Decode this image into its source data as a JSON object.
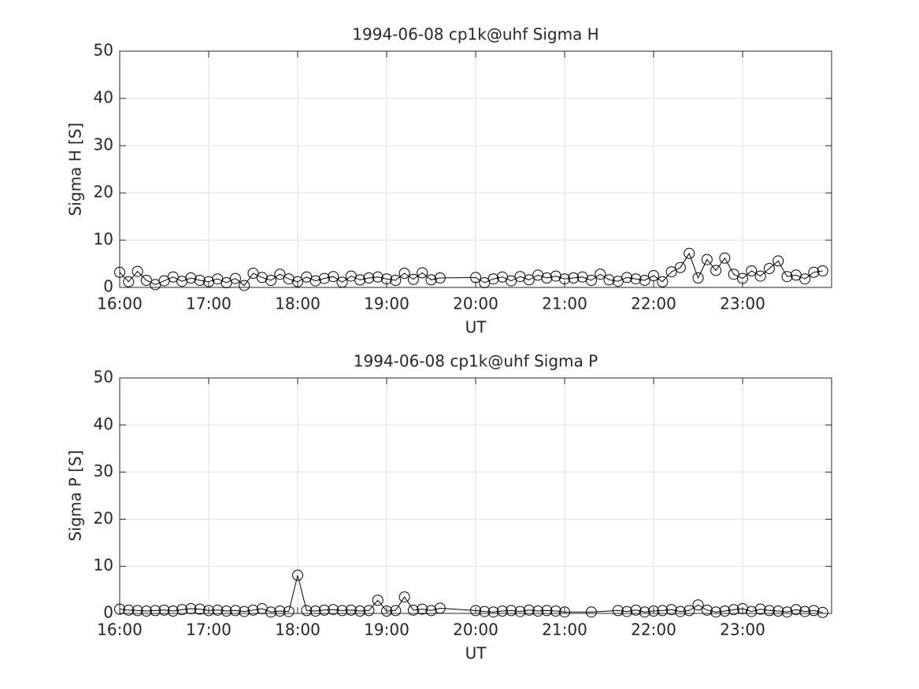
{
  "chart_data": [
    {
      "type": "line",
      "title": "1994-06-08  cp1k@uhf Sigma H",
      "xlabel": "UT",
      "ylabel": "Sigma H [S]",
      "color": "#000000",
      "marker": "circle",
      "grid": true,
      "xlim": [
        16,
        24
      ],
      "ylim": [
        0,
        50
      ],
      "xticks": [
        {
          "value": 16,
          "label": "16:00"
        },
        {
          "value": 17,
          "label": "17:00"
        },
        {
          "value": 18,
          "label": "18:00"
        },
        {
          "value": 19,
          "label": "19:00"
        },
        {
          "value": 20,
          "label": "20:00"
        },
        {
          "value": 21,
          "label": "21:00"
        },
        {
          "value": 22,
          "label": "22:00"
        },
        {
          "value": 23,
          "label": "23:00"
        }
      ],
      "yticks": [
        0,
        10,
        20,
        30,
        40,
        50
      ],
      "x": [
        16,
        16.1,
        16.2,
        16.3,
        16.4,
        16.5,
        16.6,
        16.7,
        16.8,
        16.9,
        17,
        17.1,
        17.2,
        17.3,
        17.4,
        17.5,
        17.6,
        17.7,
        17.8,
        17.9,
        18,
        18.1,
        18.2,
        18.3,
        18.4,
        18.5,
        18.6,
        18.7,
        18.8,
        18.9,
        19,
        19.1,
        19.2,
        19.3,
        19.4,
        19.5,
        19.6,
        20,
        20.1,
        20.2,
        20.3,
        20.4,
        20.5,
        20.6,
        20.7,
        20.8,
        20.9,
        21,
        21.1,
        21.2,
        21.3,
        21.4,
        21.5,
        21.6,
        21.7,
        21.8,
        21.9,
        22,
        22.1,
        22.2,
        22.3,
        22.4,
        22.5,
        22.6,
        22.7,
        22.8,
        22.9,
        23,
        23.1,
        23.2,
        23.3,
        23.4,
        23.5,
        23.6,
        23.7,
        23.8,
        23.9
      ],
      "values": [
        3.2,
        1.2,
        3.4,
        1.5,
        0.6,
        1.4,
        2.2,
        1.3,
        2.0,
        1.5,
        1.2,
        1.8,
        1.0,
        1.9,
        0.4,
        3.0,
        2.1,
        1.5,
        2.8,
        1.8,
        1.2,
        2.2,
        1.4,
        1.9,
        2.3,
        1.1,
        2.4,
        1.6,
        2.0,
        2.2,
        1.8,
        1.5,
        3.0,
        1.7,
        3.1,
        1.6,
        2.0,
        2.1,
        1.0,
        1.8,
        2.2,
        1.4,
        2.3,
        1.6,
        2.6,
        2.0,
        2.4,
        1.8,
        2.0,
        2.2,
        1.5,
        2.8,
        1.6,
        1.3,
        2.1,
        1.8,
        1.5,
        2.5,
        1.2,
        3.3,
        4.2,
        7.2,
        2.0,
        5.9,
        3.6,
        6.2,
        2.8,
        1.9,
        3.5,
        2.4,
        4.0,
        5.6,
        2.3,
        2.6,
        1.8,
        3.2,
        3.5
      ]
    },
    {
      "type": "line",
      "title": "1994-06-08  cp1k@uhf Sigma P",
      "xlabel": "UT",
      "ylabel": "Sigma P [S]",
      "color": "#000000",
      "marker": "circle",
      "grid": true,
      "xlim": [
        16,
        24
      ],
      "ylim": [
        0,
        50
      ],
      "xticks": [
        {
          "value": 16,
          "label": "16:00"
        },
        {
          "value": 17,
          "label": "17:00"
        },
        {
          "value": 18,
          "label": "18:00"
        },
        {
          "value": 19,
          "label": "19:00"
        },
        {
          "value": 20,
          "label": "20:00"
        },
        {
          "value": 21,
          "label": "21:00"
        },
        {
          "value": 22,
          "label": "22:00"
        },
        {
          "value": 23,
          "label": "23:00"
        }
      ],
      "yticks": [
        0,
        10,
        20,
        30,
        40,
        50
      ],
      "x": [
        16,
        16.1,
        16.2,
        16.3,
        16.4,
        16.5,
        16.6,
        16.7,
        16.8,
        16.9,
        17,
        17.1,
        17.2,
        17.3,
        17.4,
        17.5,
        17.6,
        17.7,
        17.8,
        17.9,
        18,
        18.1,
        18.2,
        18.3,
        18.4,
        18.5,
        18.6,
        18.7,
        18.8,
        18.9,
        19,
        19.1,
        19.2,
        19.3,
        19.4,
        19.5,
        19.6,
        20,
        20.1,
        20.2,
        20.3,
        20.4,
        20.5,
        20.6,
        20.7,
        20.8,
        20.9,
        21,
        21.3,
        21.6,
        21.7,
        21.8,
        21.9,
        22,
        22.1,
        22.2,
        22.3,
        22.4,
        22.5,
        22.6,
        22.7,
        22.8,
        22.9,
        23,
        23.1,
        23.2,
        23.3,
        23.4,
        23.5,
        23.6,
        23.7,
        23.8,
        23.9
      ],
      "values": [
        0.9,
        0.7,
        0.6,
        0.5,
        0.6,
        0.7,
        0.5,
        0.8,
        1.0,
        0.9,
        0.6,
        0.7,
        0.5,
        0.6,
        0.4,
        0.7,
        1.0,
        0.3,
        0.5,
        0.4,
        8.1,
        0.6,
        0.5,
        0.7,
        0.8,
        0.6,
        0.7,
        0.5,
        0.6,
        2.8,
        0.5,
        0.6,
        3.5,
        0.7,
        0.9,
        0.6,
        1.1,
        0.6,
        0.4,
        0.3,
        0.5,
        0.6,
        0.4,
        0.7,
        0.5,
        0.6,
        0.5,
        0.3,
        0.3,
        0.6,
        0.4,
        0.7,
        0.3,
        0.5,
        0.6,
        0.8,
        0.4,
        0.6,
        1.8,
        0.7,
        0.3,
        0.5,
        0.8,
        1.0,
        0.4,
        0.9,
        0.6,
        0.5,
        0.3,
        0.8,
        0.4,
        0.6,
        0.2
      ]
    }
  ]
}
